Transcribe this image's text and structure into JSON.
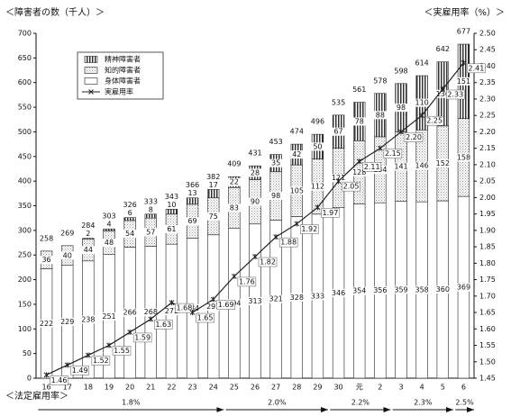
{
  "chart_data": {
    "type": "bar",
    "ylabel": "＜障害者の数（千人）＞",
    "y2label": "＜実雇用率（%）＞",
    "xlabel": "＜法定雇用率＞",
    "categories": [
      "16",
      "17",
      "18",
      "19",
      "20",
      "21",
      "22",
      "23",
      "24",
      "25",
      "26",
      "27",
      "28",
      "29",
      "30",
      "元",
      "2",
      "3",
      "4",
      "5",
      "6"
    ],
    "series": [
      {
        "name": "身体障害者",
        "color": "#ffffff",
        "pattern": "plain",
        "values": [
          222,
          229,
          238,
          251,
          266,
          268,
          272,
          284,
          291,
          304,
          313,
          321,
          328,
          333,
          346,
          354,
          356,
          359,
          358,
          360,
          369
        ]
      },
      {
        "name": "知的障害者",
        "color": "#9a9a9a",
        "pattern": "dots",
        "values": [
          36,
          40,
          44,
          48,
          54,
          57,
          61,
          69,
          75,
          83,
          90,
          98,
          105,
          112,
          121,
          128,
          134,
          141,
          146,
          152,
          158
        ]
      },
      {
        "name": "精神障害者",
        "color": "#333333",
        "pattern": "stripes",
        "values": [
          null,
          null,
          2,
          4,
          6,
          8,
          10,
          13,
          17,
          22,
          28,
          35,
          42,
          50,
          67,
          78,
          88,
          98,
          110,
          130,
          151
        ]
      },
      {
        "name": "実雇用率",
        "type": "line",
        "axis": "y2",
        "color": "#222222",
        "values": [
          1.46,
          1.49,
          1.52,
          1.55,
          1.59,
          1.63,
          1.68,
          1.65,
          1.69,
          1.76,
          1.82,
          1.88,
          1.92,
          1.97,
          2.05,
          2.11,
          2.15,
          2.2,
          2.25,
          2.33,
          2.41
        ],
        "value_labels": [
          "1.46",
          "1.49",
          "1.52",
          "1.55",
          "1.59",
          "1.63",
          "1.68",
          "1.65",
          "1.69",
          "1.76",
          "1.82",
          "1.88",
          "1.92",
          "1.97",
          "2.05",
          "2.11",
          "2.15",
          "2.20",
          "2.25",
          "2.33",
          "2.41"
        ]
      }
    ],
    "totals": [
      258,
      269,
      284,
      303,
      326,
      333,
      343,
      366,
      382,
      409,
      431,
      453,
      474,
      496,
      535,
      561,
      578,
      598,
      614,
      642,
      677
    ],
    "periods": [
      {
        "label": "1.8%",
        "from": "16",
        "to": "24"
      },
      {
        "label": "2.0%",
        "from": "25",
        "to": "29"
      },
      {
        "label": "2.2%",
        "from": "30",
        "to": "2"
      },
      {
        "label": "2.3%",
        "from": "3",
        "to": "5"
      },
      {
        "label": "2.5%",
        "from": "6",
        "to": "6"
      }
    ],
    "ylim": [
      0,
      700
    ],
    "yticks": [
      0,
      50,
      100,
      150,
      200,
      250,
      300,
      350,
      400,
      450,
      500,
      550,
      600,
      650,
      700
    ],
    "y2lim": [
      1.45,
      2.5
    ],
    "y2ticks": [
      {
        "value": 1.45,
        "label": "1.45"
      },
      {
        "value": 1.5,
        "label": "1.50"
      },
      {
        "value": 1.55,
        "label": "1.55"
      },
      {
        "value": 1.6,
        "label": "1.60"
      },
      {
        "value": 1.65,
        "label": "1.65"
      },
      {
        "value": 1.7,
        "label": "1.70"
      },
      {
        "value": 1.75,
        "label": "1.75"
      },
      {
        "value": 1.8,
        "label": "1.80"
      },
      {
        "value": 1.85,
        "label": "1.85"
      },
      {
        "value": 1.9,
        "label": "1.90"
      },
      {
        "value": 1.95,
        "label": "1.95"
      },
      {
        "value": 2,
        "label": "2.00"
      },
      {
        "value": 2.05,
        "label": "2.05"
      },
      {
        "value": 2.1,
        "label": "2.10"
      },
      {
        "value": 2.15,
        "label": "2.15"
      },
      {
        "value": 2.2,
        "label": "2.20"
      },
      {
        "value": 2.25,
        "label": "2.25"
      },
      {
        "value": 2.3,
        "label": "2.30"
      },
      {
        "value": 2.35,
        "label": "2.35"
      },
      {
        "value": 2.4,
        "label": "2.40"
      },
      {
        "value": 2.45,
        "label": "2.45"
      },
      {
        "value": 2.5,
        "label": "2.50"
      }
    ],
    "legend": "upper left"
  }
}
